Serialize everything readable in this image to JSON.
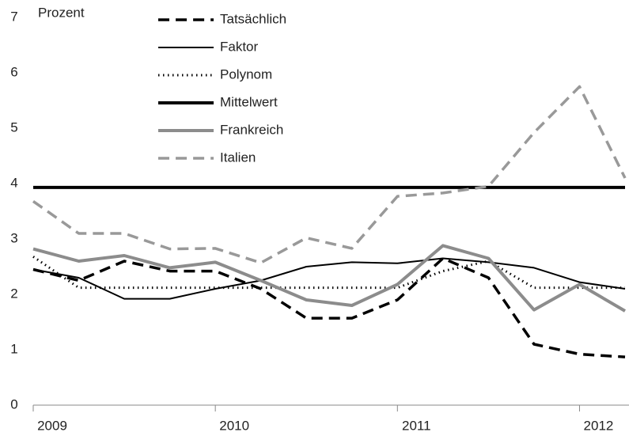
{
  "chart_data": {
    "type": "line",
    "y_label": "Prozent",
    "categories": [
      "2009",
      null,
      null,
      null,
      "2010",
      null,
      null,
      null,
      "2011",
      null,
      null,
      null,
      "2012",
      null
    ],
    "ylim": [
      0,
      7
    ],
    "yticks": [
      0,
      1,
      2,
      3,
      4,
      5,
      6,
      7
    ],
    "grid": false,
    "series": [
      {
        "name": "Tatsächlich",
        "color": "#000000",
        "linestyle": "dashed",
        "linewidth": 3.5,
        "values": [
          2.45,
          2.25,
          2.6,
          2.42,
          2.42,
          2.1,
          1.57,
          1.57,
          1.9,
          2.65,
          2.3,
          1.1,
          0.92,
          0.87
        ]
      },
      {
        "name": "Faktor",
        "color": "#000000",
        "linestyle": "solid",
        "linewidth": 2,
        "values": [
          2.45,
          2.3,
          1.92,
          1.92,
          2.1,
          2.25,
          2.5,
          2.58,
          2.56,
          2.65,
          2.58,
          2.48,
          2.22,
          2.1
        ]
      },
      {
        "name": "Polynom",
        "color": "#000000",
        "linestyle": "dotted",
        "linewidth": 3,
        "values": [
          2.68,
          2.12,
          2.12,
          2.12,
          2.12,
          2.12,
          2.12,
          2.12,
          2.12,
          2.42,
          2.6,
          2.12,
          2.12,
          2.12
        ]
      },
      {
        "name": "Mittelwert",
        "color": "#000000",
        "linestyle": "solid",
        "linewidth": 4,
        "values": [
          3.93,
          3.93,
          3.93,
          3.93,
          3.93,
          3.93,
          3.93,
          3.93,
          3.93,
          3.93,
          3.93,
          3.93,
          3.93,
          3.93
        ]
      },
      {
        "name": "Frankreich",
        "color": "#8c8c8c",
        "linestyle": "solid",
        "linewidth": 4,
        "values": [
          2.82,
          2.6,
          2.7,
          2.48,
          2.58,
          2.25,
          1.9,
          1.8,
          2.18,
          2.88,
          2.65,
          1.72,
          2.18,
          1.7
        ]
      },
      {
        "name": "Italien",
        "color": "#999999",
        "linestyle": "dashed",
        "linewidth": 3.5,
        "values": [
          3.68,
          3.1,
          3.1,
          2.82,
          2.83,
          2.57,
          3.02,
          2.83,
          3.77,
          3.83,
          3.95,
          4.92,
          5.75,
          4.1
        ]
      }
    ]
  }
}
